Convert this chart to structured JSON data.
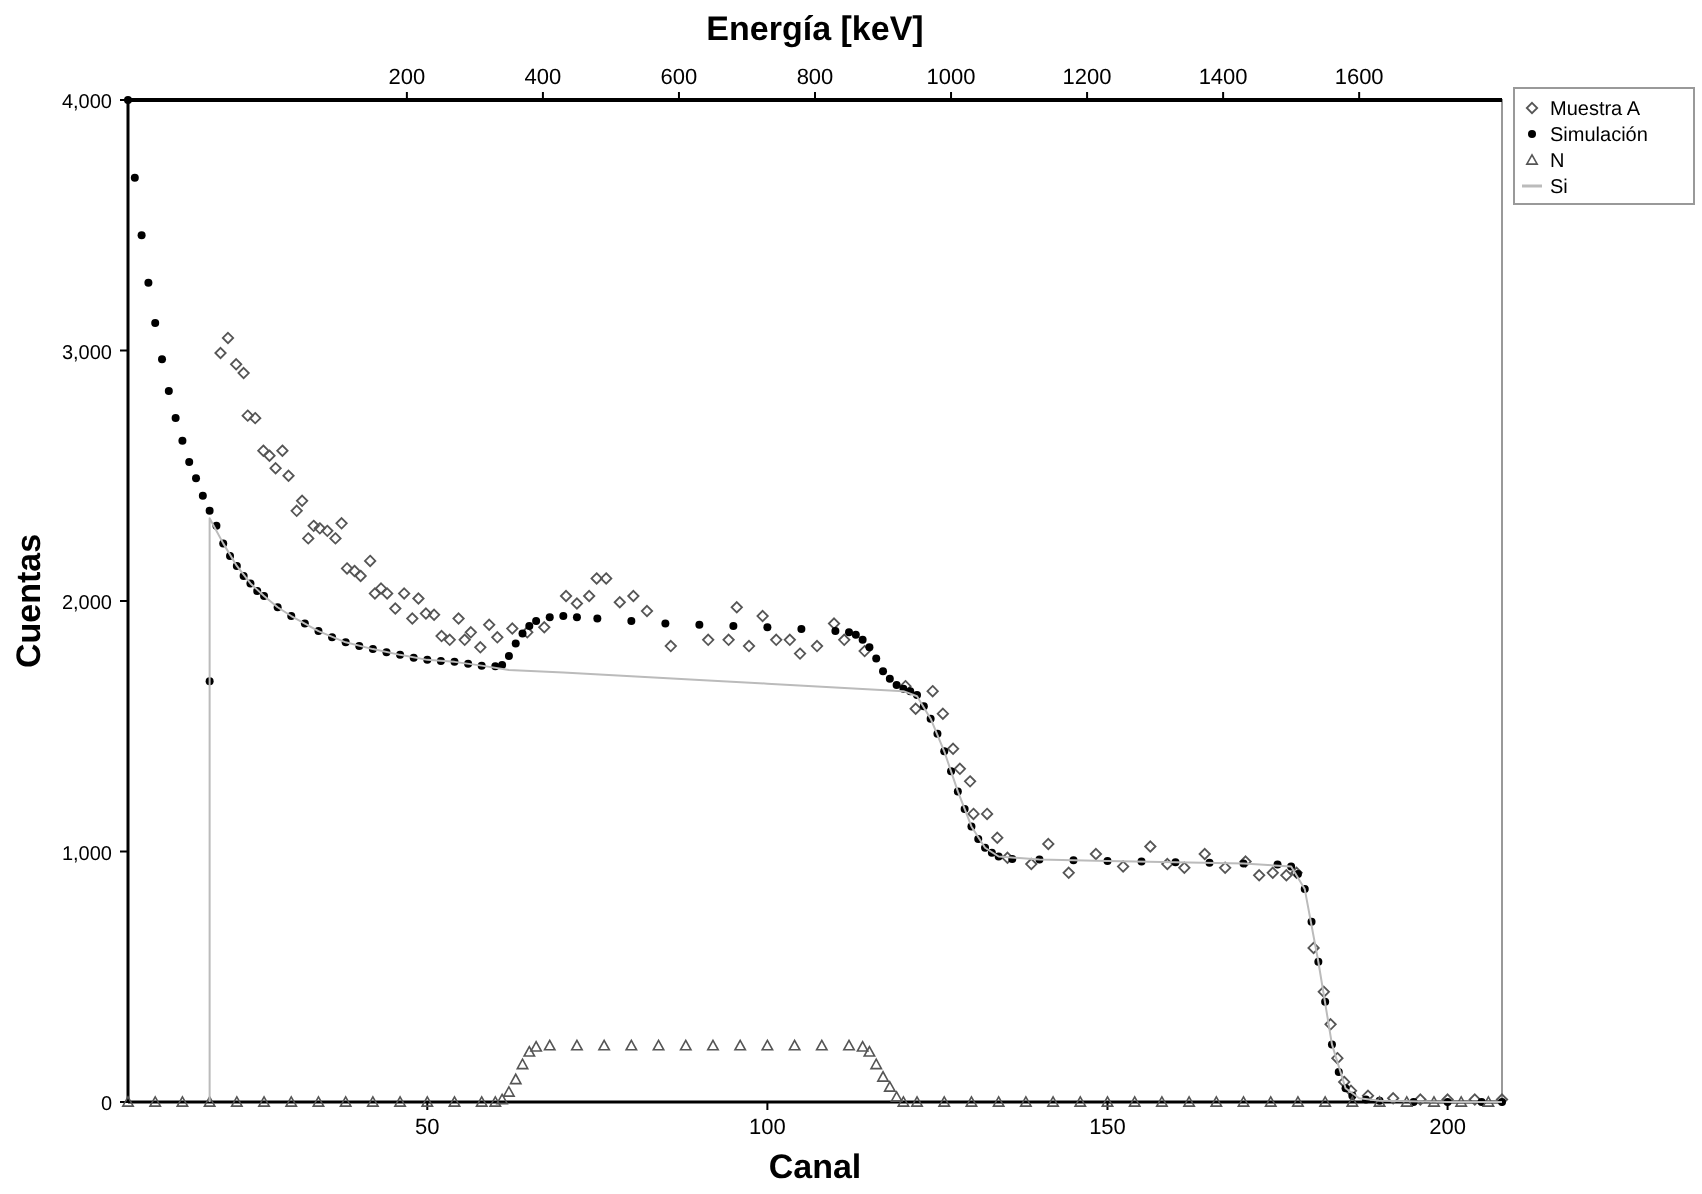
{
  "chart_data": {
    "type": "scatter",
    "xlabel": "Canal",
    "ylabel": "Cuentas",
    "x2label": "Energía [keV]",
    "xlim": [
      6,
      208
    ],
    "xticks": [
      50,
      100,
      150,
      200
    ],
    "x2lim": [
      -210,
      1810
    ],
    "x2ticks": [
      200,
      400,
      600,
      800,
      1000,
      1200,
      1400,
      1600
    ],
    "ylim": [
      0,
      4000
    ],
    "yticks": [
      0,
      {
        "value": 1000,
        "label": "1,000"
      },
      {
        "value": 2000,
        "label": "2,000"
      },
      {
        "value": 3000,
        "label": "3,000"
      },
      {
        "value": 4000,
        "label": "4,000"
      }
    ],
    "grid": false,
    "legend": "top right",
    "series": [
      {
        "name": "Muestra A",
        "color": "#555555",
        "marker": "diamond",
        "x": [
          19.6,
          20.7,
          21.9,
          23,
          23.6,
          24.7,
          25.9,
          26.8,
          27.7,
          28.7,
          29.6,
          30.8,
          31.6,
          32.5,
          33.3,
          34.2,
          35.3,
          36.5,
          37.4,
          38.2,
          39.3,
          40.2,
          41.6,
          42.3,
          43.2,
          44.1,
          45.3,
          46.6,
          47.8,
          48.7,
          49.8,
          51,
          52.1,
          53.3,
          54.6,
          55.5,
          56.4,
          57.8,
          59.1,
          60.3,
          62.5,
          64.7,
          67.2,
          70.4,
          72,
          73.8,
          74.9,
          76.3,
          78.3,
          80.3,
          82.3,
          85.8,
          91.3,
          94.3,
          95.5,
          97.3,
          99.3,
          101.3,
          103.3,
          104.8,
          107.3,
          109.8,
          111.3,
          114.3,
          120.3,
          121.8,
          124.3,
          125.8,
          127.3,
          128.3,
          129.8,
          130.3,
          132.3,
          133.8,
          135.3,
          138.8,
          141.3,
          144.3,
          148.3,
          152.3,
          156.3,
          158.8,
          161.3,
          164.3,
          167.3,
          170.3,
          172.3,
          174.3,
          176.3,
          177.8,
          180.3,
          181.8,
          182.8,
          183.8,
          184.8,
          185.8,
          188.3,
          192,
          196,
          200,
          204,
          208
        ],
        "values": [
          2990,
          3050,
          2945,
          2910,
          2740,
          2730,
          2600,
          2580,
          2530,
          2600,
          2500,
          2360,
          2400,
          2250,
          2300,
          2290,
          2280,
          2250,
          2310,
          2130,
          2120,
          2100,
          2160,
          2030,
          2050,
          2030,
          1970,
          2030,
          1930,
          2010,
          1950,
          1945,
          1860,
          1845,
          1930,
          1845,
          1875,
          1815,
          1905,
          1855,
          1890,
          1875,
          1895,
          2020,
          1990,
          2020,
          2090,
          2090,
          1995,
          2020,
          1960,
          1820,
          1845,
          1845,
          1975,
          1820,
          1940,
          1845,
          1845,
          1790,
          1820,
          1910,
          1845,
          1800,
          1660,
          1570,
          1640,
          1550,
          1410,
          1330,
          1280,
          1150,
          1150,
          1055,
          975,
          950,
          1030,
          915,
          990,
          940,
          1020,
          950,
          935,
          990,
          935,
          960,
          905,
          915,
          905,
          915,
          615,
          440,
          310,
          175,
          80,
          45,
          25,
          15,
          10,
          10,
          10,
          10
        ]
      },
      {
        "name": "Simulación",
        "color": "#000000",
        "marker": "circle",
        "x": [
          6,
          7,
          8,
          9,
          10,
          11,
          12,
          13,
          14,
          15,
          16,
          17,
          18,
          18,
          19,
          20,
          21,
          22,
          23,
          24,
          25,
          26,
          28,
          30,
          32,
          34,
          36,
          38,
          40,
          42,
          44,
          46,
          48,
          50,
          52,
          54,
          56,
          58,
          60,
          61,
          62,
          63,
          64,
          65,
          66,
          68,
          70,
          72,
          75,
          80,
          85,
          90,
          95,
          100,
          105,
          110,
          112,
          113,
          114,
          115,
          116,
          117,
          118,
          119,
          120,
          121,
          122,
          123,
          124,
          125,
          126,
          127,
          128,
          129,
          130,
          131,
          132,
          133,
          134,
          136,
          140,
          145,
          150,
          155,
          160,
          165,
          170,
          175,
          177,
          178,
          179,
          180,
          181,
          182,
          183,
          184,
          185,
          186,
          188,
          190,
          195,
          200,
          205,
          208
        ],
        "values": [
          4000,
          3690,
          3460,
          3270,
          3110,
          2965,
          2838,
          2731,
          2640,
          2555,
          2490,
          2420,
          2360,
          1680,
          2300,
          2230,
          2180,
          2140,
          2100,
          2070,
          2040,
          2020,
          1975,
          1940,
          1910,
          1880,
          1855,
          1835,
          1820,
          1808,
          1795,
          1785,
          1773,
          1765,
          1760,
          1757,
          1750,
          1742,
          1740,
          1745,
          1780,
          1830,
          1870,
          1900,
          1920,
          1935,
          1940,
          1935,
          1930,
          1920,
          1910,
          1905,
          1900,
          1895,
          1888,
          1880,
          1875,
          1865,
          1845,
          1815,
          1770,
          1720,
          1690,
          1665,
          1650,
          1640,
          1625,
          1580,
          1530,
          1470,
          1400,
          1320,
          1240,
          1170,
          1100,
          1050,
          1015,
          995,
          980,
          970,
          968,
          965,
          962,
          960,
          957,
          955,
          952,
          948,
          940,
          910,
          850,
          720,
          560,
          400,
          230,
          120,
          55,
          25,
          10,
          5,
          0,
          0,
          0,
          0
        ]
      },
      {
        "name": "N",
        "color": "#555555",
        "marker": "triangle",
        "x": [
          6,
          10,
          14,
          18,
          22,
          26,
          30,
          34,
          38,
          42,
          46,
          50,
          54,
          58,
          60,
          61,
          62,
          63,
          64,
          65,
          66,
          68,
          72,
          76,
          80,
          84,
          88,
          92,
          96,
          100,
          104,
          108,
          112,
          114,
          115,
          116,
          117,
          118,
          119,
          120,
          122,
          126,
          130,
          134,
          138,
          142,
          146,
          150,
          154,
          158,
          162,
          166,
          170,
          174,
          178,
          182,
          186,
          190,
          194,
          198,
          202,
          206
        ],
        "values": [
          0,
          0,
          0,
          0,
          0,
          0,
          0,
          0,
          0,
          0,
          0,
          0,
          0,
          0,
          0,
          10,
          40,
          90,
          150,
          200,
          220,
          225,
          225,
          225,
          225,
          225,
          225,
          225,
          225,
          225,
          225,
          225,
          225,
          220,
          200,
          150,
          100,
          60,
          20,
          0,
          0,
          0,
          0,
          0,
          0,
          0,
          0,
          0,
          0,
          0,
          0,
          0,
          0,
          0,
          0,
          0,
          0,
          0,
          0,
          0,
          0,
          0
        ]
      },
      {
        "name": "Si",
        "color": "#bbbbbb",
        "type": "line",
        "marker": "none",
        "x": [
          18,
          18,
          20,
          22,
          24,
          26,
          28,
          30,
          34,
          38,
          42,
          46,
          50,
          54,
          58,
          62,
          70,
          80,
          90,
          100,
          110,
          120,
          122,
          124,
          126,
          128,
          130,
          132,
          134,
          140,
          150,
          160,
          170,
          177,
          179,
          181,
          183,
          185,
          187,
          190,
          200,
          208
        ],
        "values": [
          0,
          2330,
          2230,
          2140,
          2070,
          2020,
          1975,
          1940,
          1880,
          1835,
          1808,
          1785,
          1765,
          1757,
          1742,
          1725,
          1715,
          1700,
          1685,
          1670,
          1655,
          1640,
          1620,
          1530,
          1400,
          1240,
          1100,
          1015,
          980,
          968,
          962,
          957,
          952,
          940,
          850,
          560,
          230,
          55,
          15,
          5,
          0,
          0
        ]
      }
    ]
  }
}
